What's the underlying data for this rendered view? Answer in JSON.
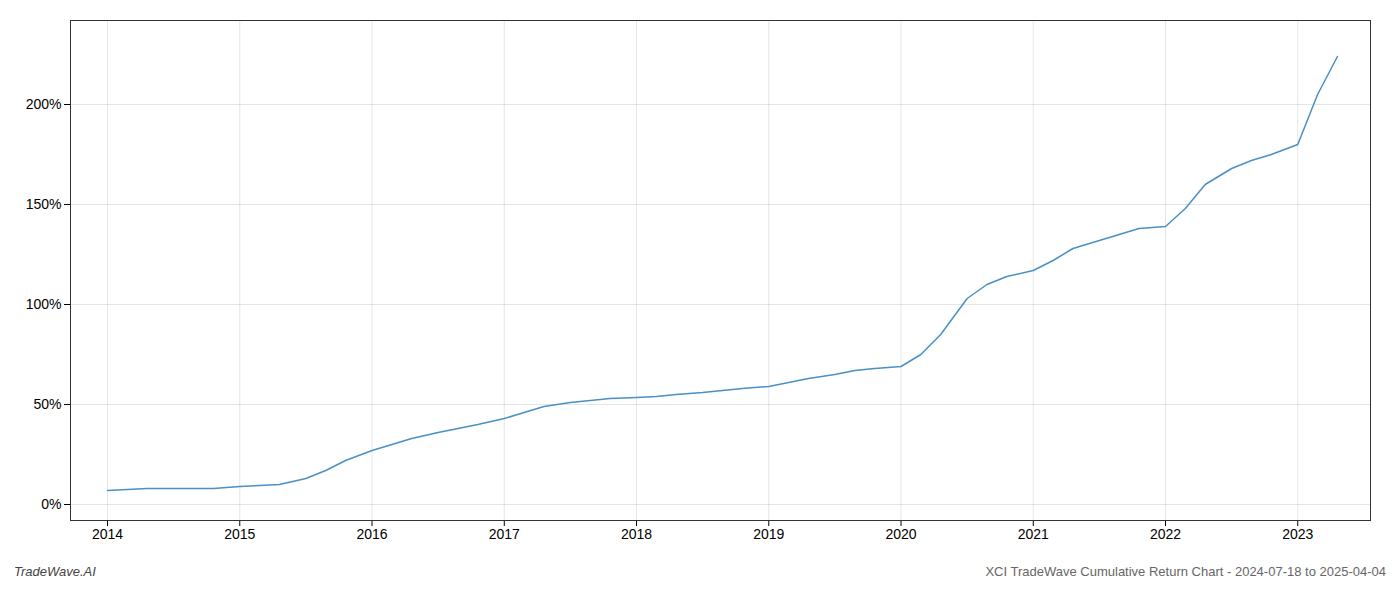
{
  "chart_data": {
    "type": "line",
    "color": "#4a90c4",
    "x": [
      2014.0,
      2014.15,
      2014.3,
      2014.5,
      2014.65,
      2014.8,
      2015.0,
      2015.15,
      2015.3,
      2015.5,
      2015.65,
      2015.8,
      2016.0,
      2016.15,
      2016.3,
      2016.5,
      2016.65,
      2016.8,
      2017.0,
      2017.15,
      2017.3,
      2017.5,
      2017.65,
      2017.8,
      2018.0,
      2018.15,
      2018.3,
      2018.5,
      2018.65,
      2018.8,
      2019.0,
      2019.15,
      2019.3,
      2019.5,
      2019.65,
      2019.8,
      2020.0,
      2020.15,
      2020.3,
      2020.5,
      2020.65,
      2020.8,
      2021.0,
      2021.15,
      2021.3,
      2021.5,
      2021.65,
      2021.8,
      2022.0,
      2022.15,
      2022.3,
      2022.5,
      2022.65,
      2022.8,
      2023.0,
      2023.15,
      2023.3
    ],
    "values": [
      7,
      7.5,
      8,
      8,
      8,
      8,
      9,
      9.5,
      10,
      13,
      17,
      22,
      27,
      30,
      33,
      36,
      38,
      40,
      43,
      46,
      49,
      51,
      52,
      53,
      53.5,
      54,
      55,
      56,
      57,
      58,
      59,
      61,
      63,
      65,
      67,
      68,
      69,
      75,
      85,
      103,
      110,
      114,
      117,
      122,
      128,
      132,
      135,
      138,
      139,
      148,
      160,
      168,
      172,
      175,
      180,
      205,
      224
    ],
    "xlim": [
      2013.72,
      2023.55
    ],
    "xticks": [
      2014,
      2015,
      2016,
      2017,
      2018,
      2019,
      2020,
      2021,
      2022,
      2023
    ],
    "ylim": [
      -8,
      242
    ],
    "yticks": [
      {
        "value": 0,
        "label": "0%"
      },
      {
        "value": 50,
        "label": "50%"
      },
      {
        "value": 100,
        "label": "100%"
      },
      {
        "value": 150,
        "label": "150%"
      },
      {
        "value": 200,
        "label": "200%"
      }
    ],
    "grid": true,
    "annotations": [
      "TradeWave.AI",
      "XCI TradeWave Cumulative Return Chart - 2024-07-18 to 2025-04-04"
    ]
  }
}
